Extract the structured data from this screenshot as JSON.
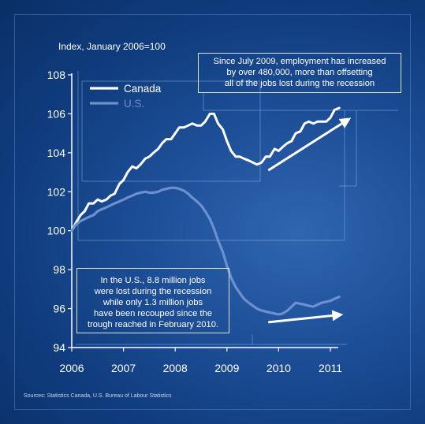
{
  "chart_data": {
    "type": "line",
    "ytitle": "Index, January 2006=100",
    "xlim": [
      2006,
      2011.25
    ],
    "ylim": [
      94,
      108
    ],
    "yticks": [
      94,
      96,
      98,
      100,
      102,
      104,
      106,
      108
    ],
    "xticks": [
      2006,
      2007,
      2008,
      2009,
      2010,
      2011
    ],
    "legend_position": "top-left",
    "series": [
      {
        "name": "Canada",
        "color": "#ffffff",
        "x": [
          2006.0,
          2006.08,
          2006.17,
          2006.25,
          2006.33,
          2006.42,
          2006.5,
          2006.58,
          2006.67,
          2006.75,
          2006.83,
          2006.92,
          2007.0,
          2007.08,
          2007.17,
          2007.25,
          2007.33,
          2007.42,
          2007.5,
          2007.58,
          2007.67,
          2007.75,
          2007.83,
          2007.92,
          2008.0,
          2008.08,
          2008.17,
          2008.25,
          2008.33,
          2008.42,
          2008.5,
          2008.58,
          2008.67,
          2008.75,
          2008.83,
          2008.92,
          2009.0,
          2009.08,
          2009.17,
          2009.25,
          2009.33,
          2009.42,
          2009.5,
          2009.58,
          2009.67,
          2009.75,
          2009.83,
          2009.92,
          2010.0,
          2010.08,
          2010.17,
          2010.25,
          2010.33,
          2010.42,
          2010.5,
          2010.58,
          2010.67,
          2010.75,
          2010.83,
          2010.92,
          2011.0,
          2011.08,
          2011.17
        ],
        "y": [
          100.0,
          100.4,
          100.8,
          101.0,
          101.4,
          101.4,
          101.6,
          101.5,
          101.6,
          101.8,
          101.9,
          102.4,
          102.6,
          103.0,
          103.3,
          103.2,
          103.4,
          103.7,
          103.8,
          104.0,
          104.2,
          104.5,
          104.7,
          104.7,
          105.0,
          105.3,
          105.3,
          105.4,
          105.5,
          105.4,
          105.4,
          105.6,
          106.0,
          106.0,
          105.5,
          105.2,
          104.6,
          104.1,
          103.8,
          103.8,
          103.7,
          103.6,
          103.5,
          103.4,
          103.5,
          103.8,
          103.8,
          104.2,
          104.1,
          104.3,
          104.5,
          104.6,
          105.0,
          105.1,
          105.5,
          105.6,
          105.5,
          105.6,
          105.6,
          105.6,
          105.8,
          106.2,
          106.3
        ]
      },
      {
        "name": "U.S.",
        "color": "#6e8fd0",
        "x": [
          2006.0,
          2006.08,
          2006.17,
          2006.25,
          2006.33,
          2006.42,
          2006.5,
          2006.58,
          2006.67,
          2006.75,
          2006.83,
          2006.92,
          2007.0,
          2007.08,
          2007.17,
          2007.25,
          2007.33,
          2007.42,
          2007.5,
          2007.58,
          2007.67,
          2007.75,
          2007.83,
          2007.92,
          2008.0,
          2008.08,
          2008.17,
          2008.25,
          2008.33,
          2008.42,
          2008.5,
          2008.58,
          2008.67,
          2008.75,
          2008.83,
          2008.92,
          2009.0,
          2009.08,
          2009.17,
          2009.25,
          2009.33,
          2009.42,
          2009.5,
          2009.58,
          2009.67,
          2009.75,
          2009.83,
          2009.92,
          2010.0,
          2010.08,
          2010.17,
          2010.25,
          2010.33,
          2010.42,
          2010.5,
          2010.58,
          2010.67,
          2010.75,
          2010.83,
          2010.92,
          2011.0,
          2011.08,
          2011.17
        ],
        "y": [
          100.0,
          100.3,
          100.5,
          100.6,
          100.7,
          100.8,
          101.0,
          101.1,
          101.2,
          101.3,
          101.4,
          101.5,
          101.6,
          101.7,
          101.8,
          101.9,
          101.95,
          102.0,
          101.95,
          101.95,
          102.0,
          102.1,
          102.15,
          102.2,
          102.2,
          102.15,
          102.05,
          101.9,
          101.7,
          101.5,
          101.3,
          101.0,
          100.6,
          100.1,
          99.5,
          98.9,
          98.2,
          97.6,
          97.1,
          96.8,
          96.5,
          96.3,
          96.15,
          96.0,
          95.9,
          95.85,
          95.8,
          95.75,
          95.7,
          95.75,
          95.9,
          96.1,
          96.3,
          96.25,
          96.2,
          96.15,
          96.1,
          96.2,
          96.3,
          96.35,
          96.4,
          96.5,
          96.6
        ]
      }
    ],
    "annotations": [
      {
        "id": "canada-note",
        "text_lines": [
          "Since July 2009, employment has increased",
          "by over 480,000, more than offsetting",
          "all of the jobs lost during the recession"
        ]
      },
      {
        "id": "us-note",
        "text_lines": [
          "In the U.S., 8.8 million jobs",
          "were lost during the recession",
          "while only 1.3 million jobs",
          "have been recouped since the",
          "trough reached in February 2010."
        ]
      }
    ],
    "arrows": [
      {
        "from": [
          2009.8,
          103.1
        ],
        "to": [
          2011.4,
          105.8
        ]
      },
      {
        "from": [
          2009.8,
          95.3
        ],
        "to": [
          2011.25,
          95.7
        ]
      }
    ]
  },
  "sources": "Sources: Statistics Canada, U.S. Bureau of Labour Statistics",
  "colors": {
    "axis": "#ffffff",
    "frame_lines": "rgba(150,190,240,0.45)"
  }
}
